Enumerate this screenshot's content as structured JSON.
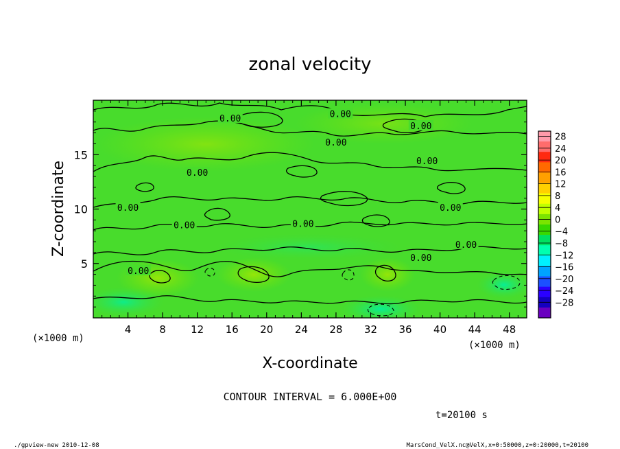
{
  "chart_data": {
    "type": "heatmap",
    "title": "zonal velocity",
    "xlabel": "X-coordinate",
    "ylabel": "Z-coordinate",
    "x_unit_left": "(×1000 m)",
    "x_unit_right": "(×1000 m)",
    "xlim": [
      0,
      50
    ],
    "ylim": [
      0,
      20
    ],
    "x_ticks": [
      "4",
      "8",
      "12",
      "16",
      "20",
      "24",
      "28",
      "32",
      "36",
      "40",
      "44",
      "48"
    ],
    "x_tick_values": [
      4,
      8,
      12,
      16,
      20,
      24,
      28,
      32,
      36,
      40,
      44,
      48
    ],
    "y_ticks": [
      "5",
      "10",
      "15"
    ],
    "y_tick_values": [
      5,
      10,
      15
    ],
    "contour_interval_text": "CONTOUR INTERVAL = 6.000E+00",
    "time_text": "t=20100 s",
    "footer_left": "./gpview-new  2010-12-08",
    "footer_right": "MarsCond_VelX.nc@VelX,x=0:50000,z=0:20000,t=20100",
    "contour_labels": [
      {
        "text": "0.00",
        "x": 15.8,
        "z": 18.3
      },
      {
        "text": "0.00",
        "x": 28.5,
        "z": 18.7
      },
      {
        "text": "0.00",
        "x": 37.8,
        "z": 17.6
      },
      {
        "text": "0.00",
        "x": 28.0,
        "z": 16.1
      },
      {
        "text": "0.00",
        "x": 38.5,
        "z": 14.4
      },
      {
        "text": "0.00",
        "x": 12.0,
        "z": 13.3
      },
      {
        "text": "0.00",
        "x": 4.0,
        "z": 10.1
      },
      {
        "text": "0.00",
        "x": 10.5,
        "z": 8.5
      },
      {
        "text": "0.00",
        "x": 24.2,
        "z": 8.6
      },
      {
        "text": "0.00",
        "x": 41.2,
        "z": 10.1
      },
      {
        "text": "0.00",
        "x": 43.0,
        "z": 6.7
      },
      {
        "text": "0.00",
        "x": 37.8,
        "z": 5.5
      },
      {
        "text": "0.00",
        "x": 5.2,
        "z": 4.3
      }
    ],
    "colorbar": {
      "labels": [
        "28",
        "24",
        "20",
        "16",
        "12",
        "8",
        "4",
        "0",
        "−4",
        "−8",
        "−12",
        "−16",
        "−20",
        "−24",
        "−28"
      ],
      "colors": [
        "#ff9aaa",
        "#ff6c6c",
        "#ff2a10",
        "#ff6a00",
        "#ffa000",
        "#ffd000",
        "#f5ff00",
        "#c0ff00",
        "#7ce400",
        "#38d800",
        "#00e060",
        "#00ffb0",
        "#00f0ff",
        "#00a4ff",
        "#1c50ff",
        "#2a00ff",
        "#1400c0",
        "#6a00c0"
      ]
    }
  }
}
